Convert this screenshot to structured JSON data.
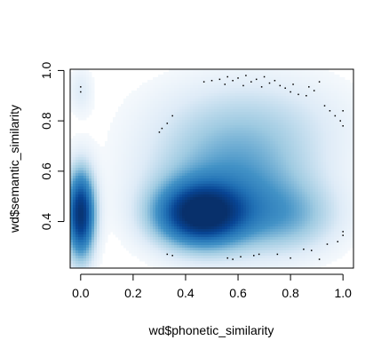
{
  "chart_data": {
    "type": "heatmap",
    "subtype": "smoothScatter density",
    "title": "",
    "xlabel": "wd$phonetic_similarity",
    "ylabel": "wd$semantic_similarity",
    "xlim": [
      -0.04,
      1.04
    ],
    "ylim": [
      0.215,
      1.005
    ],
    "x_ticks": [
      "0.0",
      "0.2",
      "0.4",
      "0.6",
      "0.8",
      "1.0"
    ],
    "y_ticks": [
      "0.4",
      "0.6",
      "0.8",
      "1.0"
    ],
    "x_tick_values": [
      0.0,
      0.2,
      0.4,
      0.6,
      0.8,
      1.0
    ],
    "y_tick_values": [
      0.4,
      0.6,
      0.8,
      1.0
    ],
    "grid": false,
    "colors": {
      "dense": "#08306b",
      "mid": "#2171b5",
      "light": "#c6dbef",
      "background": "#ffffff",
      "outlier": "#000000"
    },
    "density_clusters": [
      {
        "x_center": 0.0,
        "y_center": 0.43,
        "x_spread": 0.035,
        "y_spread": 0.11,
        "intensity": 0.95
      },
      {
        "x_center": 0.0,
        "y_center": 0.92,
        "x_spread": 0.03,
        "y_spread": 0.06,
        "intensity": 0.08
      },
      {
        "x_center": 0.46,
        "y_center": 0.43,
        "x_spread": 0.11,
        "y_spread": 0.08,
        "intensity": 1.0
      },
      {
        "x_center": 0.58,
        "y_center": 0.55,
        "x_spread": 0.2,
        "y_spread": 0.16,
        "intensity": 0.35
      },
      {
        "x_center": 0.65,
        "y_center": 0.8,
        "x_spread": 0.25,
        "y_spread": 0.13,
        "intensity": 0.12
      },
      {
        "x_center": 0.78,
        "y_center": 0.42,
        "x_spread": 0.13,
        "y_spread": 0.09,
        "intensity": 0.22
      }
    ],
    "outlier_points": [
      [
        0.0,
        0.935
      ],
      [
        0.0,
        0.915
      ],
      [
        0.3,
        0.755
      ],
      [
        0.31,
        0.77
      ],
      [
        0.33,
        0.79
      ],
      [
        0.35,
        0.82
      ],
      [
        0.47,
        0.955
      ],
      [
        0.5,
        0.96
      ],
      [
        0.53,
        0.965
      ],
      [
        0.55,
        0.945
      ],
      [
        0.56,
        0.975
      ],
      [
        0.58,
        0.96
      ],
      [
        0.6,
        0.97
      ],
      [
        0.62,
        0.94
      ],
      [
        0.63,
        0.98
      ],
      [
        0.65,
        0.955
      ],
      [
        0.67,
        0.965
      ],
      [
        0.69,
        0.935
      ],
      [
        0.7,
        0.975
      ],
      [
        0.72,
        0.95
      ],
      [
        0.74,
        0.96
      ],
      [
        0.76,
        0.94
      ],
      [
        0.78,
        0.93
      ],
      [
        0.8,
        0.915
      ],
      [
        0.81,
        0.945
      ],
      [
        0.83,
        0.905
      ],
      [
        0.86,
        0.9
      ],
      [
        0.87,
        0.935
      ],
      [
        0.89,
        0.92
      ],
      [
        0.91,
        0.955
      ],
      [
        0.93,
        0.86
      ],
      [
        0.95,
        0.84
      ],
      [
        0.97,
        0.82
      ],
      [
        0.99,
        0.8
      ],
      [
        1.0,
        0.84
      ],
      [
        1.0,
        0.78
      ],
      [
        0.33,
        0.27
      ],
      [
        0.35,
        0.265
      ],
      [
        0.56,
        0.255
      ],
      [
        0.58,
        0.25
      ],
      [
        0.61,
        0.26
      ],
      [
        0.66,
        0.265
      ],
      [
        0.68,
        0.27
      ],
      [
        0.75,
        0.27
      ],
      [
        0.8,
        0.255
      ],
      [
        0.85,
        0.29
      ],
      [
        0.88,
        0.285
      ],
      [
        0.91,
        0.25
      ],
      [
        0.94,
        0.31
      ],
      [
        0.98,
        0.32
      ],
      [
        1.0,
        0.345
      ],
      [
        1.0,
        0.36
      ]
    ]
  }
}
